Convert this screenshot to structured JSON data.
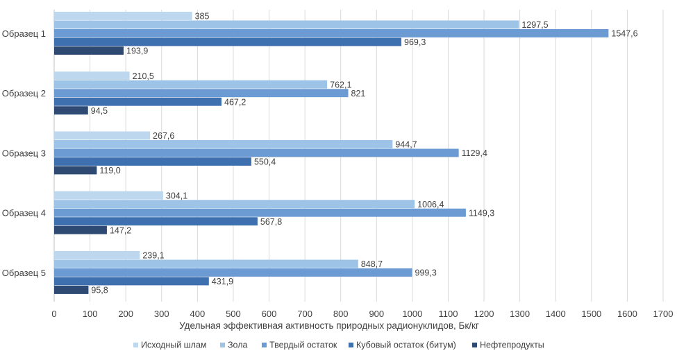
{
  "chart_data": {
    "type": "bar",
    "orientation": "horizontal",
    "title": "",
    "xlabel": "Удельная эффективная активность природных радионуклидов, Бк/кг",
    "ylabel": "",
    "xlim": [
      0,
      1700
    ],
    "x_ticks": [
      0,
      100,
      200,
      300,
      400,
      500,
      600,
      700,
      800,
      900,
      1000,
      1100,
      1200,
      1300,
      1400,
      1500,
      1600,
      1700
    ],
    "grid": true,
    "legend_position": "bottom",
    "categories": [
      "Образец 1",
      "Образец 2",
      "Образец 3",
      "Образец 4",
      "Образец 5"
    ],
    "series": [
      {
        "name": "Исходный шлам",
        "color": "#bdd7ee",
        "values": [
          385,
          210.5,
          267.6,
          304.1,
          239.1
        ],
        "labels": [
          "385",
          "210,5",
          "267,6",
          "304,1",
          "239,1"
        ]
      },
      {
        "name": "Зола",
        "color": "#9dc3e6",
        "values": [
          1297.5,
          762.1,
          944.7,
          1006.4,
          848.7
        ],
        "labels": [
          "1297,5",
          "762,1",
          "944,7",
          "1006,4",
          "848,7"
        ]
      },
      {
        "name": "Твердый остаток",
        "color": "#6b9bd2",
        "values": [
          1547.6,
          821,
          1129.4,
          1149.3,
          999.3
        ],
        "labels": [
          "1547,6",
          "821",
          "1129,4",
          "1149,3",
          "999,3"
        ]
      },
      {
        "name": "Кубовый остаток (битум)",
        "color": "#3e6fae",
        "values": [
          969.3,
          467.2,
          550.4,
          567.8,
          431.9
        ],
        "labels": [
          "969,3",
          "467,2",
          "550,4",
          "567,8",
          "431,9"
        ]
      },
      {
        "name": "Нефтепродукты",
        "color": "#2e4a72",
        "values": [
          193.9,
          94.5,
          119.0,
          147.2,
          95.8
        ],
        "labels": [
          "193,9",
          "94,5",
          "119,0",
          "147,2",
          "95,8"
        ]
      }
    ]
  }
}
